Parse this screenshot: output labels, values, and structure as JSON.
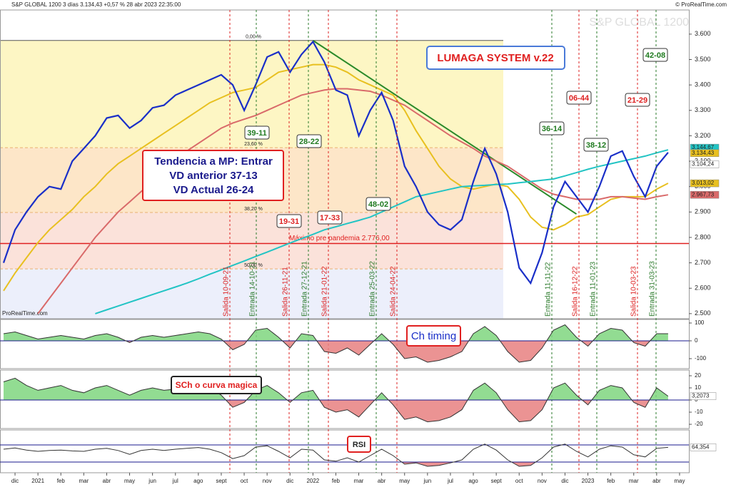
{
  "header": {
    "title": "S&P GLOBAL 1200 3 días 3.134,43 +0,57 % 28 abr 2023 22:35:00",
    "copyright": "© ProRealTime.com",
    "watermark": "S&P GLOBAL 1200",
    "source": "ProRealTime.com"
  },
  "chart_data": [
    {
      "type": "line",
      "categories": [
        null,
        "dic",
        null,
        "2021",
        null,
        "feb",
        null,
        "mar",
        null,
        "abr",
        null,
        "may",
        null,
        "jun",
        null,
        "jul",
        null,
        "ago",
        null,
        "sept",
        null,
        "oct",
        null,
        "nov",
        null,
        "dic",
        null,
        "2022",
        null,
        "feb",
        null,
        "mar",
        null,
        "abr",
        null,
        "may",
        null,
        "jun",
        null,
        "jul",
        null,
        "ago",
        null,
        "sept",
        null,
        "oct",
        null,
        "nov",
        null,
        "dic",
        null,
        "2023",
        null,
        "feb",
        null,
        "mar",
        null,
        "abr",
        null,
        "may"
      ],
      "series": [
        {
          "color": "#e8c020",
          "values": [
            2590,
            2660,
            2720,
            2780,
            2830,
            2870,
            2910,
            2960,
            3000,
            3050,
            3090,
            3120,
            3150,
            3180,
            3210,
            3240,
            3270,
            3300,
            3330,
            3350,
            3370,
            3380,
            3390,
            3420,
            3450,
            3460,
            3470,
            3480,
            3480,
            3470,
            3450,
            3420,
            3400,
            3380,
            3360,
            3300,
            3220,
            3150,
            3080,
            3030,
            3000,
            2990,
            3000,
            3010,
            3000,
            2950,
            2880,
            2840,
            2830,
            2850,
            2880,
            2890,
            2920,
            2950,
            2960,
            2960,
            2960,
            2990,
            3013.02,
            null
          ]
        },
        {
          "color": "#d96a6a",
          "values": [
            null,
            null,
            null,
            2500,
            2560,
            2620,
            2680,
            2740,
            2800,
            2850,
            2900,
            2940,
            2980,
            3020,
            3060,
            3100,
            3140,
            3170,
            3200,
            3230,
            3250,
            3265,
            3280,
            3300,
            3320,
            3340,
            3360,
            3370,
            3380,
            3385,
            3385,
            3380,
            3375,
            3360,
            3340,
            3320,
            3290,
            3260,
            3230,
            3200,
            3175,
            3150,
            3120,
            3100,
            3080,
            3050,
            3020,
            2990,
            2970,
            2960,
            2950,
            2950,
            2950,
            2960,
            2960,
            2955,
            2950,
            2960,
            2967.73,
            null
          ]
        },
        {
          "color": "#22c4c4",
          "values": [
            null,
            null,
            null,
            null,
            null,
            null,
            null,
            null,
            2500,
            2515,
            2530,
            2545,
            2560,
            2575,
            2590,
            2605,
            2620,
            2637,
            2655,
            2672,
            2690,
            2707,
            2725,
            2742,
            2760,
            2778,
            2795,
            2812,
            2830,
            2842,
            2855,
            2867,
            2880,
            2900,
            2920,
            2940,
            2960,
            2970,
            2980,
            2990,
            3000,
            3003,
            3005,
            3008,
            3010,
            3015,
            3020,
            3025,
            3030,
            3042,
            3055,
            3068,
            3080,
            3090,
            3100,
            3110,
            3120,
            3133,
            3144.67,
            null
          ]
        },
        {
          "color": "#1a2fc8",
          "values": [
            2700,
            2830,
            2900,
            2960,
            3000,
            2990,
            3100,
            3150,
            3200,
            3270,
            3280,
            3230,
            3260,
            3310,
            3320,
            3360,
            3380,
            3400,
            3420,
            3440,
            3400,
            3300,
            3400,
            3510,
            3530,
            3450,
            3520,
            3570,
            3490,
            3380,
            3360,
            3200,
            3300,
            3370,
            3260,
            3080,
            3000,
            2900,
            2850,
            2830,
            2870,
            3020,
            3150,
            3050,
            2900,
            2680,
            2620,
            2740,
            2920,
            3020,
            2960,
            2900,
            3000,
            3120,
            3140,
            3040,
            2960,
            3080,
            3134.43,
            null
          ]
        }
      ],
      "price_labels": [
        {
          "value": 3144.67,
          "label": "3.144,67",
          "color": "#22c4c4"
        },
        {
          "value": 3134.43,
          "label": "3.134,43",
          "color": "#e8c020"
        },
        {
          "value": 3104.24,
          "label": "3.104,24",
          "color": "#fff"
        },
        {
          "value": 3013.02,
          "label": "3.013,02",
          "color": "#e8c020"
        },
        {
          "value": 2967.73,
          "label": "2.967,73",
          "color": "#d96a6a"
        }
      ],
      "ylim": [
        2480,
        3695
      ],
      "yticks": [
        {
          "value": 2500,
          "label": "2.500"
        },
        {
          "value": 2600,
          "label": "2.600"
        },
        {
          "value": 2700,
          "label": "2.700"
        },
        {
          "value": 2800,
          "label": "2.800"
        },
        {
          "value": 2900,
          "label": "2.900"
        },
        {
          "value": 3000,
          "label": "3.000"
        },
        {
          "value": 3100,
          "label": "3.100"
        },
        {
          "value": 3200,
          "label": "3.200"
        },
        {
          "value": 3300,
          "label": "3.300"
        },
        {
          "value": 3400,
          "label": "3.400"
        },
        {
          "value": 3500,
          "label": "3.500"
        },
        {
          "value": 3600,
          "label": "3.600"
        }
      ],
      "fib_levels": [
        {
          "value": 3575,
          "label": "0,00 %"
        },
        {
          "value": 3153,
          "label": "23,60 %"
        },
        {
          "value": 2898,
          "label": "38,20 %"
        },
        {
          "value": 2676,
          "label": "50,00 %"
        }
      ],
      "hline": {
        "value": 2776,
        "label": "Máximo pre pandemia  2.776,00",
        "color": "#e02020"
      },
      "trendline": {
        "from": [
          27,
          3575
        ],
        "to": [
          50,
          2892
        ],
        "color": "#2a8a2a"
      },
      "signals": [
        {
          "label": "Salida 10-09-21",
          "kind": "exit"
        },
        {
          "label": "Entrada 14-10-21",
          "kind": "entry"
        },
        {
          "label": "Salida 26-11-21",
          "kind": "exit"
        },
        {
          "label": "Entrada 27-12-21",
          "kind": "entry"
        },
        {
          "label": "Salida 21-01-22",
          "kind": "exit"
        },
        {
          "label": "Entrada 25-03-22",
          "kind": "entry"
        },
        {
          "label": "Salida 24-04-22",
          "kind": "exit"
        },
        {
          "label": "Entrada 11-11-22",
          "kind": "entry"
        },
        {
          "label": "Salida 16-12-22",
          "kind": "exit"
        },
        {
          "label": "Entrada 11-01-23",
          "kind": "entry"
        },
        {
          "label": "Salida 10-03-23",
          "kind": "exit"
        },
        {
          "label": "Entrada 31-03-23",
          "kind": "entry"
        }
      ],
      "scores": [
        {
          "label": "39-11",
          "kind": "entry"
        },
        {
          "label": "28-22",
          "kind": "entry"
        },
        {
          "label": "48-02",
          "kind": "entry"
        },
        {
          "label": "19-31",
          "kind": "exit"
        },
        {
          "label": "17-33",
          "kind": "exit"
        },
        {
          "label": "36-14",
          "kind": "entry"
        },
        {
          "label": "38-12",
          "kind": "entry"
        },
        {
          "label": "42-08",
          "kind": "entry"
        },
        {
          "label": "06-44",
          "kind": "exit"
        },
        {
          "label": "21-29",
          "kind": "exit"
        }
      ],
      "trend_box": [
        "Tendencia a MP: Entrar",
        "VD anterior 37-13",
        "VD Actual  26-24"
      ],
      "system_label": "LUMAGA SYSTEM v.22"
    },
    {
      "type": "area",
      "title": "Ch timing",
      "ylim": [
        -156,
        120
      ],
      "yticks": [
        100,
        0,
        -100
      ],
      "color_pos": "#7fd67f",
      "color_neg": "#e88080",
      "baseline": 0,
      "values": [
        40,
        50,
        30,
        10,
        20,
        30,
        20,
        10,
        30,
        40,
        20,
        -10,
        20,
        30,
        20,
        30,
        40,
        50,
        40,
        10,
        -50,
        -20,
        60,
        70,
        20,
        -40,
        40,
        30,
        -60,
        -70,
        -40,
        -80,
        -20,
        40,
        -20,
        -100,
        -90,
        -120,
        -110,
        -90,
        -60,
        40,
        80,
        30,
        -60,
        -120,
        -110,
        -40,
        60,
        90,
        20,
        -30,
        40,
        70,
        60,
        -10,
        -30,
        40,
        40,
        null
      ]
    },
    {
      "type": "area",
      "title": "SCh o curva magica",
      "ylim": [
        -23.5,
        24.7
      ],
      "yticks": [
        20,
        10,
        0,
        -10,
        -20
      ],
      "color_pos": "#7fd67f",
      "color_neg": "#e88080",
      "baseline": 0,
      "last_label": {
        "value": 3.2073,
        "label": "3,2073"
      },
      "values": [
        15,
        18,
        12,
        8,
        10,
        12,
        8,
        6,
        10,
        12,
        8,
        4,
        8,
        10,
        8,
        9,
        12,
        14,
        10,
        4,
        -6,
        -2,
        8,
        12,
        6,
        -2,
        6,
        8,
        -6,
        -10,
        -8,
        -14,
        -4,
        6,
        -4,
        -16,
        -14,
        -18,
        -17,
        -14,
        -8,
        8,
        14,
        6,
        -8,
        -18,
        -17,
        -8,
        10,
        14,
        4,
        -4,
        8,
        12,
        10,
        -2,
        -6,
        10,
        3.2073,
        null
      ]
    },
    {
      "type": "area",
      "title": "RSI",
      "ylim": [
        5,
        105
      ],
      "reference_lines": [
        70,
        30
      ],
      "color_pos": "#7fd67f",
      "color_neg": "#e88080",
      "last_label": {
        "value": 64.354,
        "label": "64,354"
      },
      "values": [
        60,
        63,
        58,
        55,
        57,
        58,
        56,
        55,
        60,
        62,
        57,
        48,
        57,
        60,
        57,
        60,
        62,
        64,
        60,
        52,
        38,
        45,
        65,
        68,
        55,
        40,
        60,
        58,
        35,
        32,
        40,
        30,
        45,
        60,
        45,
        25,
        28,
        20,
        22,
        28,
        35,
        60,
        72,
        58,
        35,
        20,
        22,
        40,
        65,
        72,
        55,
        42,
        60,
        68,
        65,
        47,
        42,
        62,
        64.354,
        null
      ]
    }
  ]
}
